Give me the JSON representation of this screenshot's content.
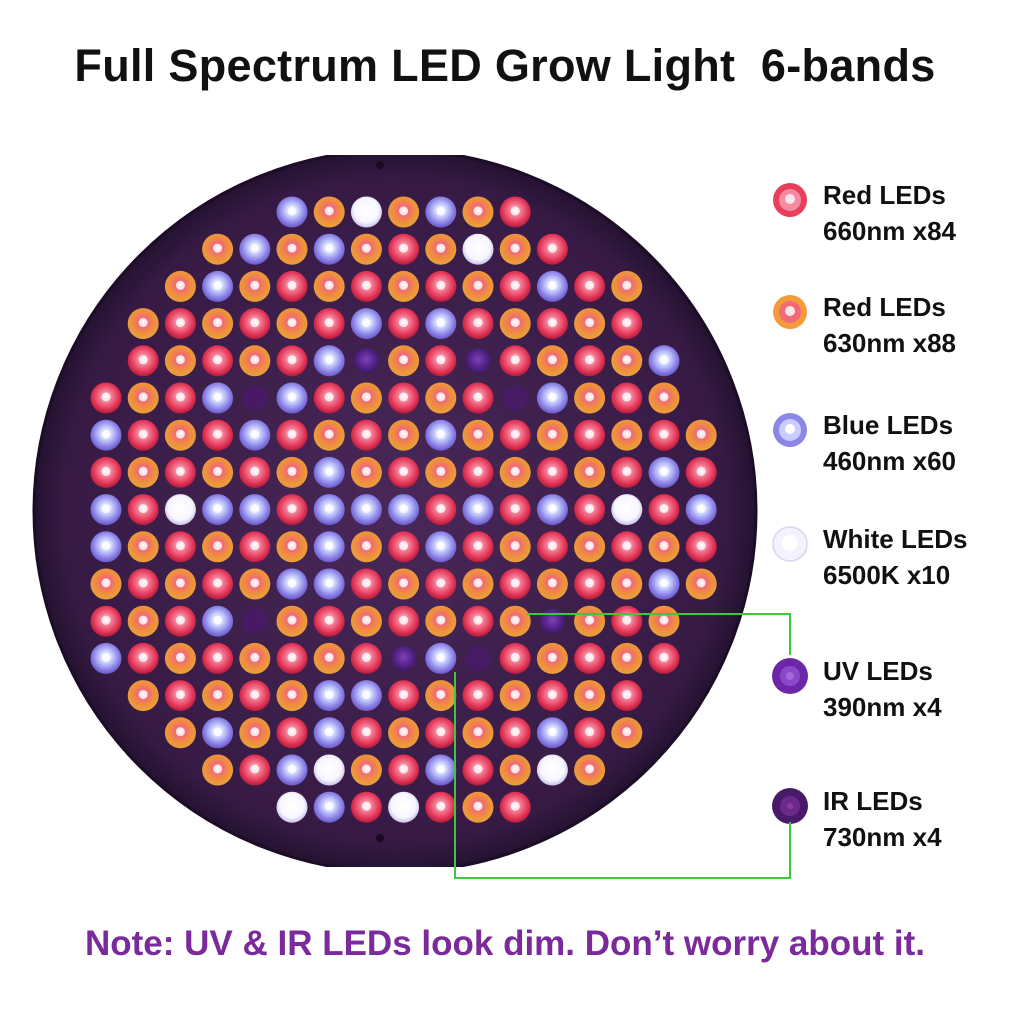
{
  "title": "Full Spectrum LED Grow Light  6-bands",
  "note": "Note: UV & IR LEDs look dim. Don’t worry about it.",
  "colors": {
    "panel": "#3a1f4a",
    "note_text": "#7a2a9a",
    "callout_line": "#3cc83c",
    "red_660": "#e8405a",
    "red_630": "#f39a3a",
    "blue_460": "#8c86e6",
    "white_6500k": "#f4f2ff",
    "uv_390": "#6a28a8",
    "ir_730": "#4a1a6a"
  },
  "legend": [
    {
      "name": "Red LEDs",
      "spec": "660nm x84",
      "icon": "red-660-led-icon",
      "type": "red660"
    },
    {
      "name": "Red LEDs",
      "spec": "630nm x88",
      "icon": "red-630-led-icon",
      "type": "red630"
    },
    {
      "name": "Blue LEDs",
      "spec": "460nm x60",
      "icon": "blue-led-icon",
      "type": "blue"
    },
    {
      "name": "White LEDs",
      "spec": "6500K x10",
      "icon": "white-led-icon",
      "type": "white"
    },
    {
      "name": "UV LEDs",
      "spec": "390nm x4",
      "icon": "uv-led-icon",
      "type": "uv"
    },
    {
      "name": "IR LEDs",
      "spec": "730nm x4",
      "icon": "ir-led-icon",
      "type": "ir"
    }
  ]
}
